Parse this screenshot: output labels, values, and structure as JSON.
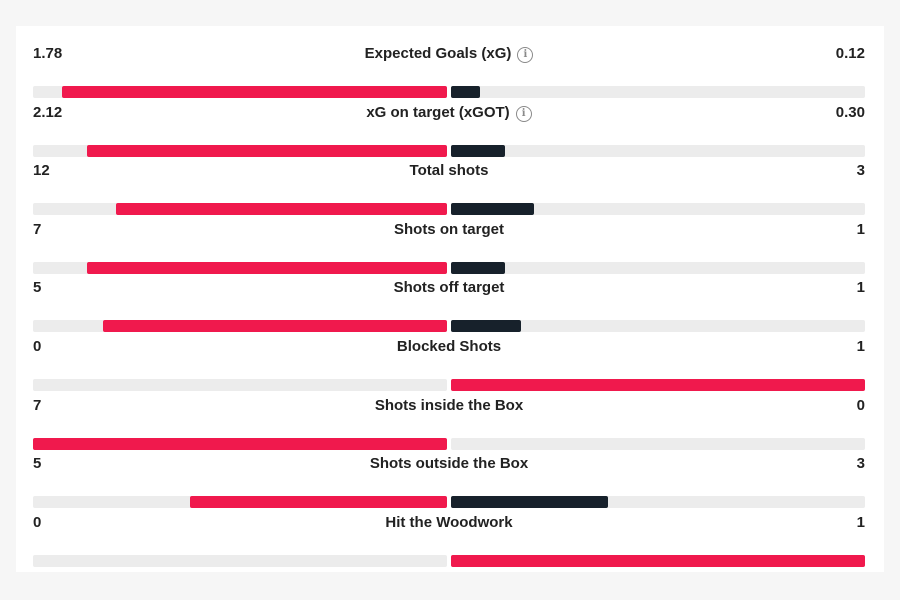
{
  "colors": {
    "winner": "#f0194d",
    "loser": "#17212b",
    "track": "#ececec"
  },
  "chart_data": {
    "type": "bar",
    "title": "",
    "categories": [
      "Expected Goals (xG)",
      "xG on target (xGOT)",
      "Total shots",
      "Shots on target",
      "Shots off target",
      "Blocked Shots",
      "Shots inside the Box",
      "Shots outside the Box",
      "Hit the Woodwork"
    ],
    "series": [
      {
        "values": [
          1.78,
          2.12,
          12,
          7,
          5,
          0,
          7,
          5,
          0
        ]
      },
      {
        "values": [
          0.12,
          0.3,
          3,
          1,
          1,
          1,
          0,
          3,
          1
        ]
      }
    ],
    "rows": [
      {
        "label": "Expected Goals (xG)",
        "home": "1.78",
        "away": "0.12",
        "info_icon": "info-icon",
        "home_fill": 0.93,
        "away_fill": 0.07
      },
      {
        "label": "xG on target (xGOT)",
        "home": "2.12",
        "away": "0.30",
        "info_icon": "info-icon",
        "home_fill": 0.87,
        "away_fill": 0.13
      },
      {
        "label": "Total shots",
        "home": "12",
        "away": "3",
        "home_fill": 0.8,
        "away_fill": 0.2
      },
      {
        "label": "Shots on target",
        "home": "7",
        "away": "1",
        "home_fill": 0.87,
        "away_fill": 0.13
      },
      {
        "label": "Shots off target",
        "home": "5",
        "away": "1",
        "home_fill": 0.83,
        "away_fill": 0.17
      },
      {
        "label": "Blocked Shots",
        "home": "0",
        "away": "1",
        "home_fill": 0,
        "away_fill": 1
      },
      {
        "label": "Shots inside the Box",
        "home": "7",
        "away": "0",
        "home_fill": 1,
        "away_fill": 0
      },
      {
        "label": "Shots outside the Box",
        "home": "5",
        "away": "3",
        "home_fill": 0.62,
        "away_fill": 0.38
      },
      {
        "label": "Hit the Woodwork",
        "home": "0",
        "away": "1",
        "home_fill": 0,
        "away_fill": 1
      }
    ],
    "legend": "none",
    "grid": false
  }
}
